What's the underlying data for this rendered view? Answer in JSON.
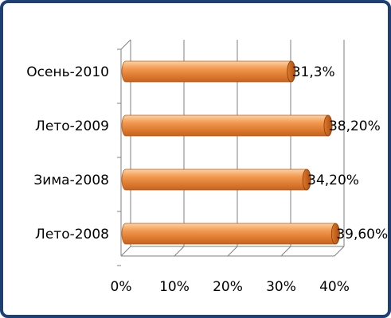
{
  "chart_data": {
    "type": "bar",
    "orientation": "horizontal",
    "style": "3d-cylinder",
    "categories": [
      "Осень-2010",
      "Лето-2009",
      "Зима-2008",
      "Лето-2008"
    ],
    "values": [
      31.3,
      38.2,
      34.2,
      39.6
    ],
    "data_labels": [
      "31,3%",
      "38,20%",
      "34,20%",
      "39,60%"
    ],
    "xticks": [
      "0%",
      "10%",
      "20%",
      "30%",
      "40%"
    ],
    "xlim": [
      0,
      40
    ],
    "grid": true,
    "legend": "none",
    "bar_color": "#e8873a",
    "border_color": "#1f3f73"
  }
}
